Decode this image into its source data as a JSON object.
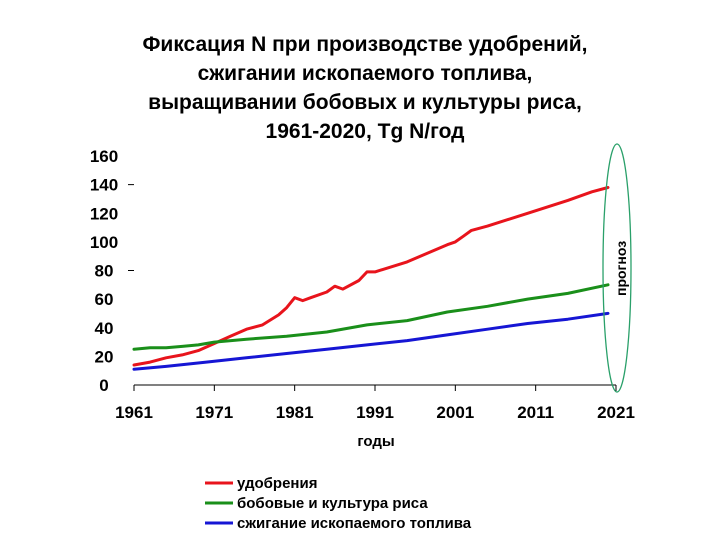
{
  "chart_data": {
    "type": "line",
    "title_lines": [
      "Фиксация N при производстве удобрений,",
      "сжигании ископаемого топлива,",
      "выращивании бобовых и культуры риса,",
      "1961-2020, Tg N/год"
    ],
    "xlabel": "годы",
    "ylabel": "",
    "xlim": [
      1961,
      2021
    ],
    "ylim": [
      0,
      160
    ],
    "x_ticks": [
      1961,
      1971,
      1981,
      1991,
      2001,
      2011,
      2021
    ],
    "y_ticks": [
      0,
      20,
      40,
      60,
      80,
      100,
      120,
      140,
      160
    ],
    "grid": false,
    "legend_position": "bottom",
    "annotation": "прогноз",
    "annotation_range": [
      2019,
      2021
    ],
    "series": [
      {
        "name": "удобрения",
        "color": "#e8141c",
        "x": [
          1961,
          1963,
          1965,
          1967,
          1969,
          1971,
          1973,
          1975,
          1977,
          1979,
          1980,
          1981,
          1982,
          1983,
          1985,
          1986,
          1987,
          1989,
          1990,
          1991,
          1995,
          2000,
          2001,
          2002,
          2003,
          2005,
          2010,
          2015,
          2018,
          2020
        ],
        "y": [
          14,
          16,
          19,
          21,
          24,
          29,
          34,
          39,
          42,
          49,
          54,
          61,
          59,
          61,
          65,
          69,
          67,
          73,
          79,
          79,
          86,
          98,
          100,
          104,
          108,
          111,
          120,
          129,
          135,
          138
        ]
      },
      {
        "name": "бобовые и культура риса",
        "color": "#1a8f1a",
        "x": [
          1961,
          1963,
          1965,
          1967,
          1969,
          1971,
          1975,
          1980,
          1985,
          1990,
          1995,
          2000,
          2005,
          2010,
          2015,
          2020
        ],
        "y": [
          25,
          26,
          26,
          27,
          28,
          30,
          32,
          34,
          37,
          42,
          45,
          51,
          55,
          60,
          64,
          70
        ]
      },
      {
        "name": "сжигание ископаемого топлива",
        "color": "#1616d4",
        "x": [
          1961,
          1965,
          1970,
          1975,
          1980,
          1985,
          1990,
          1995,
          2000,
          2005,
          2010,
          2015,
          2020
        ],
        "y": [
          11,
          13,
          16,
          19,
          22,
          25,
          28,
          31,
          35,
          39,
          43,
          46,
          50
        ]
      }
    ]
  }
}
